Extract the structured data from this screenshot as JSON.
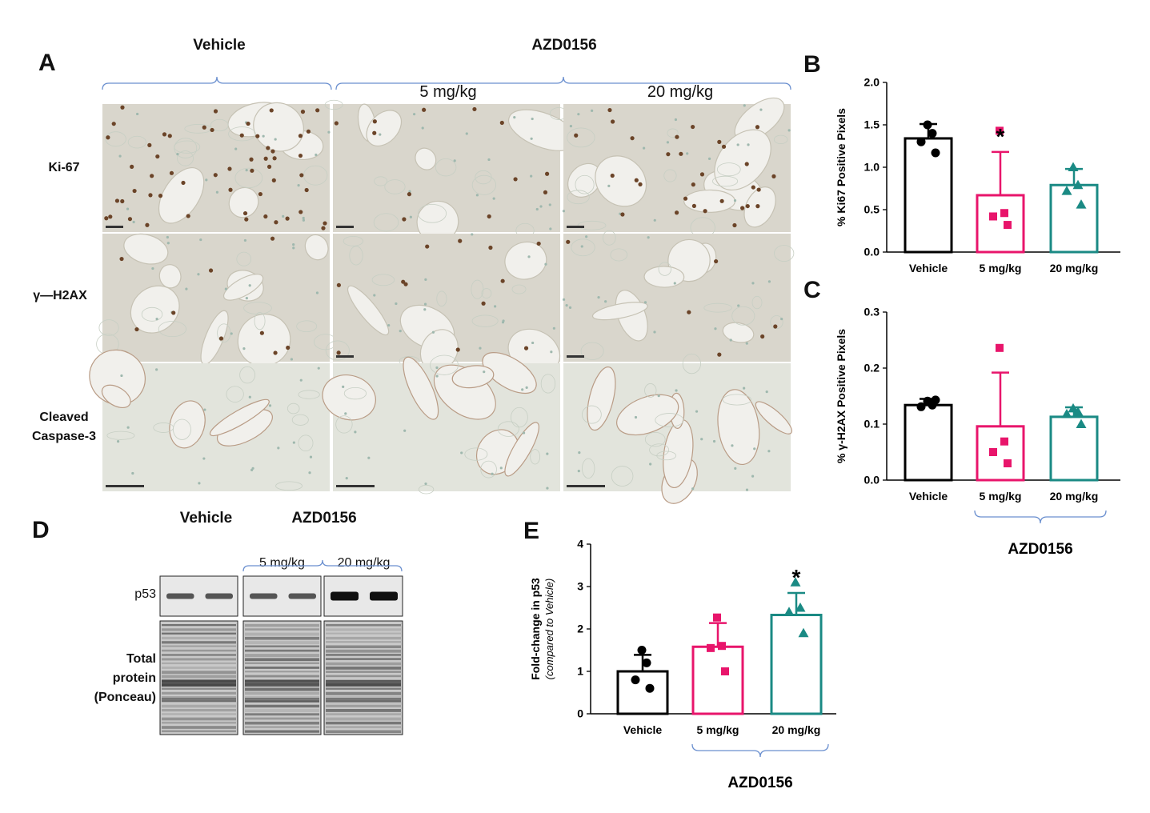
{
  "panel_letters": {
    "a": "A",
    "b": "B",
    "c": "C",
    "d": "D",
    "e": "E"
  },
  "panel_a": {
    "header_vehicle": "Vehicle",
    "header_drug": "AZD0156",
    "dose_low": "5 mg/kg",
    "dose_high": "20 mg/kg",
    "rows": [
      "Ki-67",
      "γ—H2AX",
      "Cleaved Caspase-3"
    ]
  },
  "panel_d": {
    "header_vehicle": "Vehicle",
    "header_drug": "AZD0156",
    "dose_low": "5 mg/kg",
    "dose_high": "20 mg/kg",
    "row_p53": "p53",
    "row_total": [
      "Total",
      "protein",
      "(Ponceau)"
    ]
  },
  "colors": {
    "vehicle": "#000000",
    "low": "#e8156b",
    "high": "#1a8a84",
    "bracket": "#6a8fcf"
  },
  "chart_data": [
    {
      "id": "B",
      "type": "bar",
      "categories": [
        "Vehicle",
        "5 mg/kg",
        "20 mg/kg"
      ],
      "values": [
        1.34,
        0.67,
        0.79
      ],
      "errors": [
        0.17,
        0.51,
        0.19
      ],
      "points": [
        [
          1.5,
          1.4,
          1.3,
          1.17
        ],
        [
          1.43,
          0.46,
          0.42,
          0.32
        ],
        [
          1.0,
          0.79,
          0.72,
          0.56
        ]
      ],
      "markers": [
        "circle",
        "square",
        "triangle"
      ],
      "significance": [
        "",
        "*",
        ""
      ],
      "ylabel": "% Ki67 Positive Pixels",
      "ylim": [
        0,
        2.0
      ],
      "yticks": [
        "0.0",
        "0.5",
        "1.0",
        "1.5",
        "2.0"
      ],
      "group_label": ""
    },
    {
      "id": "C",
      "type": "bar",
      "categories": [
        "Vehicle",
        "5 mg/kg",
        "20 mg/kg"
      ],
      "values": [
        0.134,
        0.096,
        0.113
      ],
      "errors": [
        0.011,
        0.096,
        0.017
      ],
      "points": [
        [
          0.141,
          0.134,
          0.131,
          0.143
        ],
        [
          0.236,
          0.069,
          0.05,
          0.03
        ],
        [
          0.128,
          0.122,
          0.118,
          0.1
        ]
      ],
      "markers": [
        "circle",
        "square",
        "triangle"
      ],
      "significance": [
        "",
        "",
        ""
      ],
      "ylabel": "% γ-H2AX Positive Pixels",
      "ylim": [
        0,
        0.3
      ],
      "yticks": [
        "0.0",
        "0.1",
        "0.2",
        "0.3"
      ],
      "group_label": "AZD0156"
    },
    {
      "id": "E",
      "type": "bar",
      "categories": [
        "Vehicle",
        "5 mg/kg",
        "20 mg/kg"
      ],
      "values": [
        1.0,
        1.58,
        2.33
      ],
      "errors": [
        0.39,
        0.56,
        0.52
      ],
      "points": [
        [
          1.5,
          1.2,
          0.8,
          0.6
        ],
        [
          2.27,
          1.6,
          1.55,
          1.0
        ],
        [
          3.1,
          2.5,
          2.4,
          1.9
        ]
      ],
      "markers": [
        "circle",
        "square",
        "triangle"
      ],
      "significance": [
        "",
        "",
        "*"
      ],
      "ylabel": "Fold-change in p53",
      "ylabel2": "(compared to Vehicle)",
      "ylim": [
        0,
        4
      ],
      "yticks": [
        "0",
        "1",
        "2",
        "3",
        "4"
      ],
      "group_label": "AZD0156"
    }
  ]
}
